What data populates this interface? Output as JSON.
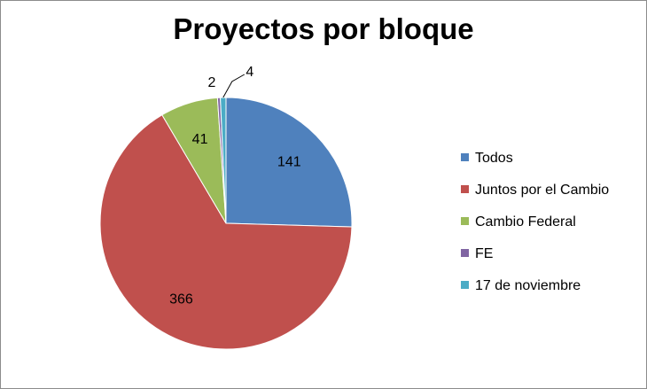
{
  "chart_data": {
    "type": "pie",
    "title": "Proyectos por bloque",
    "categories": [
      "Todos",
      "Juntos por el Cambio",
      "Cambio Federal",
      "FE",
      "17 de noviembre"
    ],
    "values": [
      141,
      366,
      41,
      2,
      4
    ],
    "colors": [
      "#4f81bd",
      "#c0504d",
      "#9bbb59",
      "#8064a2",
      "#4bacc6"
    ],
    "legend_position": "right",
    "start_angle": "top (12 o'clock)",
    "direction": "clockwise"
  }
}
